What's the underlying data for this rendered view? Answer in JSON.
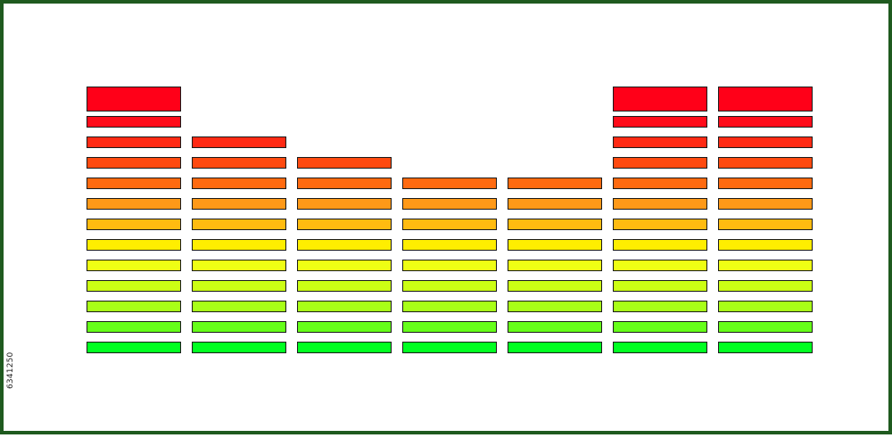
{
  "equalizer": {
    "columns": [
      {
        "level": 12,
        "peak": true
      },
      {
        "level": 11,
        "peak": false
      },
      {
        "level": 10,
        "peak": false
      },
      {
        "level": 9,
        "peak": false
      },
      {
        "level": 9,
        "peak": false
      },
      {
        "level": 12,
        "peak": true
      },
      {
        "level": 12,
        "peak": true
      }
    ],
    "max_level": 12,
    "segment_colors": [
      "#00ff22",
      "#66ff1a",
      "#a8ff18",
      "#ccff14",
      "#eeff14",
      "#ffee00",
      "#ffbb10",
      "#ff9918",
      "#ff6a10",
      "#ff4a10",
      "#ff2a14",
      "#ff0c1a",
      "#ff0018"
    ],
    "border_color": "#1f5a1f"
  },
  "watermark": {
    "stock_id": "6341250"
  }
}
